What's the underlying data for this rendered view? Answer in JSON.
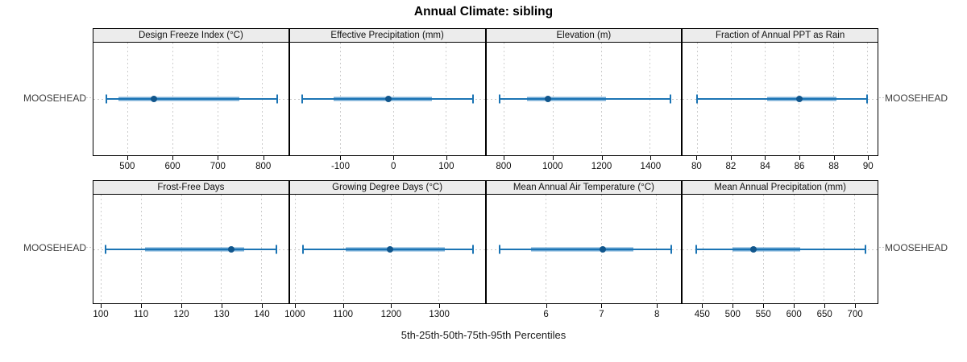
{
  "title": "Annual Climate: sibling",
  "caption": "5th-25th-50th-75th-95th Percentiles",
  "row_labels": {
    "top_left": "MOOSEHEAD",
    "top_right": "MOOSEHEAD",
    "bottom_left": "MOOSEHEAD",
    "bottom_right": "MOOSEHEAD"
  },
  "colors": {
    "line": "#1b74b4",
    "band": "#6fa8d4",
    "dot": "#11568c",
    "strip_bg": "#ececec",
    "grid": "#cdcdcd",
    "border": "#000000"
  },
  "chart_data": {
    "type": "percentile-interval-dotplot",
    "group": "MOOSEHEAD",
    "percentile_labels": [
      "5th",
      "25th",
      "50th",
      "75th",
      "95th"
    ],
    "legend_position": "none",
    "grid": "dotted vertical at ticks, dotted horizontal at row",
    "panels": [
      {
        "label": "Design Freeze Index (°C)",
        "slug": "design-freeze-index",
        "row": 0,
        "col": 0,
        "axis": {
          "min": 424,
          "max": 857,
          "ticks": [
            500,
            600,
            700,
            800
          ]
        },
        "percentiles": {
          "p5": 453,
          "p25": 479,
          "p50": 558,
          "p75": 748,
          "p95": 832
        }
      },
      {
        "label": "Effective Precipitation (mm)",
        "slug": "effective-precipitation",
        "row": 0,
        "col": 1,
        "axis": {
          "min": -197,
          "max": 174,
          "ticks": [
            -100,
            0,
            100
          ]
        },
        "percentiles": {
          "p5": -174,
          "p25": -113,
          "p50": -10,
          "p75": 74,
          "p95": 152
        }
      },
      {
        "label": "Elevation (m)",
        "slug": "elevation",
        "row": 0,
        "col": 2,
        "axis": {
          "min": 726,
          "max": 1528,
          "ticks": [
            800,
            1000,
            1200,
            1400
          ]
        },
        "percentiles": {
          "p5": 780,
          "p25": 892,
          "p50": 980,
          "p75": 1219,
          "p95": 1484
        }
      },
      {
        "label": "Fraction of Annual PPT as Rain",
        "slug": "fraction-annual-ppt-rain",
        "row": 0,
        "col": 3,
        "axis": {
          "min": 79.15,
          "max": 90.6,
          "ticks": [
            80,
            82,
            84,
            86,
            88,
            90
          ]
        },
        "percentiles": {
          "p5": 80,
          "p25": 84.1,
          "p50": 86,
          "p75": 88.2,
          "p95": 90
        }
      },
      {
        "label": "Frost-Free Days",
        "slug": "frost-free-days",
        "row": 1,
        "col": 0,
        "axis": {
          "min": 98,
          "max": 146.75,
          "ticks": [
            100,
            110,
            120,
            130,
            140
          ]
        },
        "percentiles": {
          "p5": 101,
          "p25": 111,
          "p50": 132.5,
          "p75": 135.8,
          "p95": 143.7
        }
      },
      {
        "label": "Growing Degree Days (°C)",
        "slug": "growing-degree-days",
        "row": 1,
        "col": 1,
        "axis": {
          "min": 988,
          "max": 1396,
          "ticks": [
            1000,
            1100,
            1200,
            1300
          ]
        },
        "percentiles": {
          "p5": 1015,
          "p25": 1105,
          "p50": 1198,
          "p75": 1312,
          "p95": 1372
        }
      },
      {
        "label": "Mean Annual Air Temperature (°C)",
        "slug": "mean-annual-air-temperature",
        "row": 1,
        "col": 2,
        "axis": {
          "min": 4.91,
          "max": 8.45,
          "ticks": [
            6,
            7,
            8
          ]
        },
        "percentiles": {
          "p5": 5.15,
          "p25": 5.72,
          "p50": 7.03,
          "p75": 7.58,
          "p95": 8.27
        }
      },
      {
        "label": "Mean Annual Precipitation (mm)",
        "slug": "mean-annual-precipitation",
        "row": 1,
        "col": 3,
        "axis": {
          "min": 417,
          "max": 738,
          "ticks": [
            450,
            500,
            550,
            600,
            650,
            700
          ]
        },
        "percentiles": {
          "p5": 439,
          "p25": 499,
          "p50": 533,
          "p75": 610,
          "p95": 718
        }
      }
    ]
  }
}
